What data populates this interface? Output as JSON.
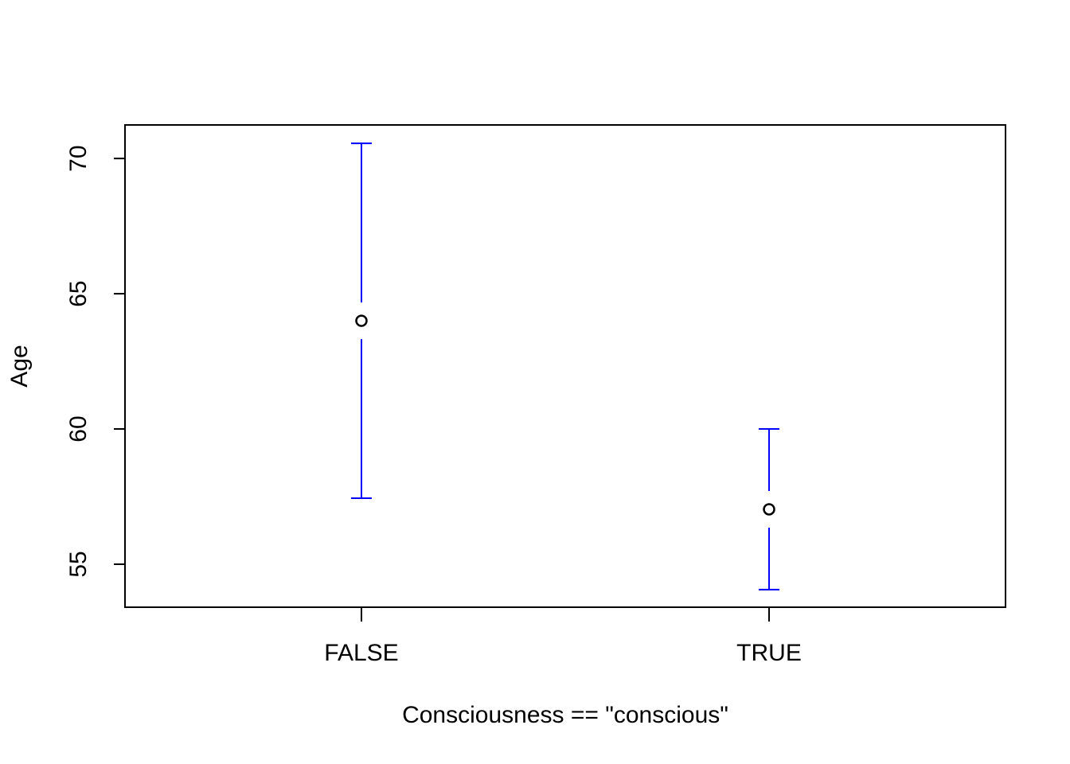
{
  "chart_data": {
    "type": "errorbar",
    "x_label": "Consciousness == \"conscious\"",
    "y_label": "Age",
    "categories": [
      "FALSE",
      "TRUE"
    ],
    "series": [
      {
        "color": "#0000ff",
        "point_color": "#000000",
        "values": [
          64.0,
          57.03
        ],
        "lower": [
          57.44,
          54.06
        ],
        "upper": [
          70.56,
          60.0
        ]
      }
    ],
    "ylim": [
      53.41,
      71.24
    ],
    "yticks": [
      55,
      60,
      65,
      70
    ]
  }
}
